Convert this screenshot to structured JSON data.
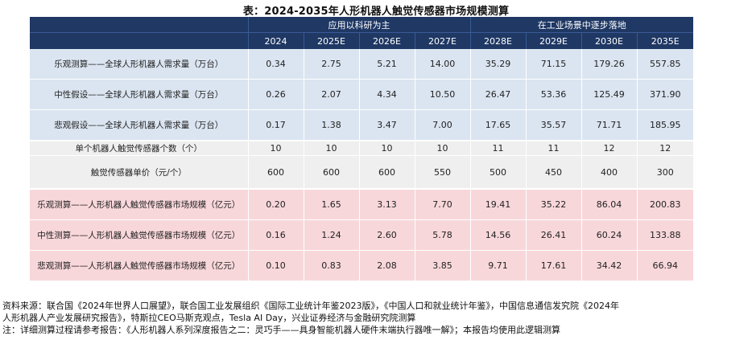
{
  "title": "表：2024-2035年人形机器人触觉传感器市场规模测算",
  "group_headers": [
    "应用以科研为主",
    "在工业场景中逐步落地"
  ],
  "years": [
    "2024",
    "2025E",
    "2026E",
    "2027E",
    "2028E",
    "2029E",
    "2030E",
    "2035E"
  ],
  "rows": [
    {
      "label": "乐观测算——全球人形机器人需求量（万台）",
      "values": [
        "0.34",
        "2.75",
        "5.21",
        "14.00",
        "35.29",
        "71.15",
        "179.26",
        "557.85"
      ]
    },
    {
      "label": "中性假设——全球人形机器人需求量（万台）",
      "values": [
        "0.26",
        "2.07",
        "4.34",
        "10.50",
        "26.47",
        "53.36",
        "125.49",
        "371.90"
      ]
    },
    {
      "label": "悲观假设——全球人形机器人需求量（万台）",
      "values": [
        "0.17",
        "1.38",
        "3.47",
        "7.00",
        "17.65",
        "35.57",
        "71.71",
        "185.95"
      ]
    },
    {
      "label": "单个机器人触觉传感器个数（个）",
      "values": [
        "10",
        "10",
        "10",
        "10",
        "11",
        "11",
        "12",
        "12"
      ]
    },
    {
      "label": "触觉传感器单价（元/个）",
      "values": [
        "600",
        "600",
        "600",
        "550",
        "500",
        "450",
        "400",
        "300"
      ]
    },
    {
      "label": "乐观测算——人形机器人触觉传感器市场规模（亿元）",
      "values": [
        "0.20",
        "1.65",
        "3.13",
        "7.70",
        "19.41",
        "35.22",
        "86.04",
        "200.83"
      ]
    },
    {
      "label": "中性测算——人形机器人触觉传感器市场规模（亿元）",
      "values": [
        "0.16",
        "1.24",
        "2.60",
        "5.78",
        "14.56",
        "26.41",
        "60.24",
        "133.88"
      ]
    },
    {
      "label": "悲观测算——人形机器人触觉传感器市场规模（亿元）",
      "values": [
        "0.10",
        "0.83",
        "2.08",
        "3.85",
        "9.71",
        "17.61",
        "34.42",
        "66.94"
      ]
    }
  ],
  "source_line1": "资料来源：联合国《2024年世界人口展望》，联合国工业发展组织《国际工业统计年鉴2023版》，《中国人口和就业统计年鉴》，中国信息通信发究院《2024年",
  "source_line2": "人形机器人产业发展研究报告》，特斯拉CEO马斯克观点，Tesla AI Day，兴业证券经济与金融研究院测算",
  "note_line": "注：详细测算过程请参考报告：《人形机器人系列深度报告之二：灵巧手——具身智能机器人硬件末端执行器唯一解》；本报告均使用此逻辑测算",
  "colors": {
    "header_bg": "#1f3864",
    "blue_row": "#dbe5f1",
    "grey_row": "#efefef",
    "pink_row": "#f8d7da"
  }
}
